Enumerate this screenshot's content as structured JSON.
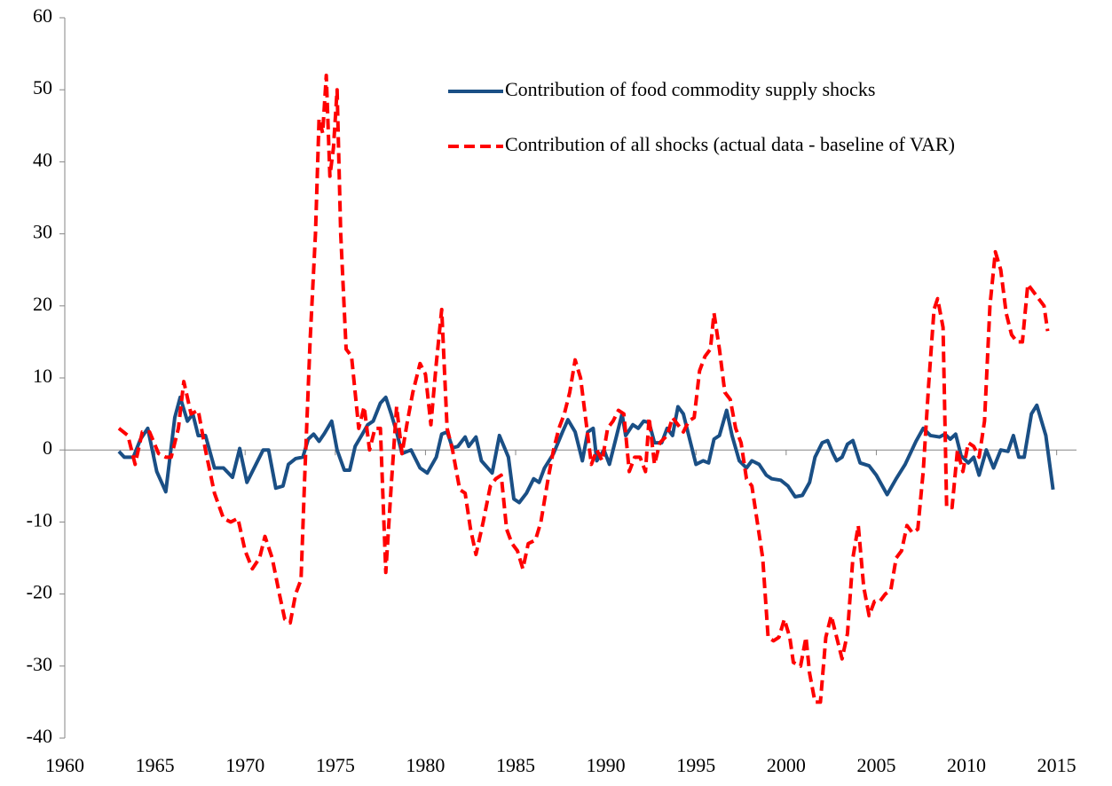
{
  "chart_data": {
    "type": "line",
    "xlim": [
      1960,
      2016.1
    ],
    "xticks": [
      1960,
      1965,
      1970,
      1975,
      1980,
      1985,
      1990,
      1995,
      2000,
      2005,
      2010,
      2015
    ],
    "ylim": [
      -40,
      60
    ],
    "yticks": [
      -40,
      -30,
      -20,
      -10,
      0,
      10,
      20,
      30,
      40,
      50,
      60
    ],
    "grid": false,
    "legend": "top-right",
    "series": [
      {
        "name": "Contribution of food commodity supply shocks",
        "color": "#1a4f85",
        "style": "solid",
        "x": [
          1963.0,
          1963.3,
          1963.8,
          1964.2,
          1964.6,
          1965.1,
          1965.6,
          1966.1,
          1966.4,
          1966.8,
          1967.1,
          1967.4,
          1967.8,
          1968.3,
          1968.8,
          1969.3,
          1969.7,
          1970.1,
          1970.6,
          1971.0,
          1971.3,
          1971.7,
          1972.1,
          1972.4,
          1972.8,
          1973.2,
          1973.5,
          1973.8,
          1974.1,
          1974.4,
          1974.8,
          1975.1,
          1975.5,
          1975.8,
          1976.1,
          1976.5,
          1976.8,
          1977.1,
          1977.5,
          1977.8,
          1978.1,
          1978.4,
          1978.7,
          1979.2,
          1979.7,
          1980.1,
          1980.6,
          1980.9,
          1981.2,
          1981.5,
          1981.8,
          1982.2,
          1982.4,
          1982.8,
          1983.1,
          1983.7,
          1984.1,
          1984.6,
          1984.9,
          1985.2,
          1985.6,
          1986.0,
          1986.3,
          1986.6,
          1987.1,
          1987.6,
          1987.9,
          1988.3,
          1988.7,
          1989.0,
          1989.3,
          1989.5,
          1989.9,
          1990.2,
          1990.6,
          1990.9,
          1991.1,
          1991.5,
          1991.8,
          1992.1,
          1992.4,
          1992.7,
          1993.1,
          1993.4,
          1993.7,
          1994.0,
          1994.3,
          1994.6,
          1995.0,
          1995.4,
          1995.7,
          1996.0,
          1996.3,
          1996.7,
          1997.0,
          1997.4,
          1997.8,
          1998.1,
          1998.5,
          1998.9,
          1999.2,
          1999.7,
          2000.1,
          2000.5,
          2000.9,
          2001.3,
          2001.6,
          2002.0,
          2002.3,
          2002.6,
          2002.8,
          2003.1,
          2003.4,
          2003.7,
          2004.1,
          2004.6,
          2005.0,
          2005.6,
          2006.1,
          2006.6,
          2007.2,
          2007.6,
          2008.0,
          2008.5,
          2008.8,
          2009.1,
          2009.4,
          2009.7,
          2010.1,
          2010.4,
          2010.7,
          2011.1,
          2011.5,
          2011.9,
          2012.3,
          2012.6,
          2012.9,
          2013.2,
          2013.6,
          2013.9,
          2014.4,
          2014.8
        ],
        "values": [
          -0.2,
          -1,
          -1,
          1.5,
          3,
          -3,
          -5.8,
          4.5,
          7.3,
          4,
          5,
          2,
          2,
          -2.5,
          -2.5,
          -3.8,
          0.2,
          -4.5,
          -2,
          0,
          0,
          -5.3,
          -5,
          -2,
          -1.2,
          -1,
          1.5,
          2.2,
          1.2,
          2.3,
          4,
          0,
          -2.8,
          -2.8,
          0.5,
          2.2,
          3.5,
          4,
          6.5,
          7.3,
          5,
          2.5,
          -0.5,
          0,
          -2.5,
          -3.2,
          -1,
          2.2,
          2.5,
          0.3,
          0.5,
          1.8,
          0.5,
          1.8,
          -1.5,
          -3.2,
          2,
          -1,
          -6.8,
          -7.3,
          -6,
          -4,
          -4.5,
          -2.5,
          -0.5,
          2.5,
          4.2,
          2.5,
          -1.5,
          2.5,
          3,
          -1.5,
          0,
          -2,
          2,
          5,
          2,
          3.5,
          3,
          4,
          3.8,
          1,
          1,
          3,
          2,
          6,
          5,
          2,
          -2,
          -1.5,
          -1.8,
          1.5,
          2,
          5.5,
          2,
          -1.5,
          -2.5,
          -1.5,
          -2,
          -3.5,
          -4,
          -4.2,
          -5,
          -6.5,
          -6.3,
          -4.5,
          -1,
          1,
          1.3,
          -0.5,
          -1.5,
          -1,
          0.8,
          1.3,
          -1.8,
          -2.2,
          -3.5,
          -6.2,
          -4,
          -2,
          1.2,
          3,
          2,
          1.8,
          2.2,
          1.5,
          2.2,
          -0.8,
          -1.8,
          -1,
          -3.5,
          0,
          -2.5,
          0,
          -0.2,
          2,
          -1,
          -1,
          5,
          6.2,
          2,
          -5.5
        ]
      },
      {
        "name": "Contribution of all shocks (actual data - baseline of VAR)",
        "color": "#ff0000",
        "style": "dashed",
        "x": [
          1963.0,
          1963.5,
          1963.9,
          1964.3,
          1964.7,
          1965.2,
          1965.6,
          1965.9,
          1966.3,
          1966.6,
          1967.0,
          1967.4,
          1967.8,
          1968.3,
          1968.8,
          1969.2,
          1969.6,
          1970.0,
          1970.4,
          1970.8,
          1971.1,
          1971.5,
          1971.9,
          1972.2,
          1972.5,
          1972.8,
          1973.1,
          1973.3,
          1973.6,
          1973.9,
          1974.1,
          1974.3,
          1974.5,
          1974.7,
          1974.9,
          1975.1,
          1975.3,
          1975.6,
          1975.9,
          1976.3,
          1976.6,
          1976.9,
          1977.2,
          1977.5,
          1977.8,
          1978.1,
          1978.4,
          1978.7,
          1979.0,
          1979.3,
          1979.7,
          1980.0,
          1980.3,
          1980.6,
          1980.9,
          1981.2,
          1981.5,
          1981.9,
          1982.2,
          1982.5,
          1982.8,
          1983.2,
          1983.6,
          1983.9,
          1984.2,
          1984.5,
          1984.8,
          1985.1,
          1985.4,
          1985.7,
          1986.1,
          1986.4,
          1986.8,
          1987.1,
          1987.4,
          1987.7,
          1988.0,
          1988.3,
          1988.6,
          1988.9,
          1989.2,
          1989.5,
          1989.8,
          1990.1,
          1990.4,
          1990.7,
          1991.0,
          1991.3,
          1991.6,
          1991.9,
          1992.2,
          1992.4,
          1992.7,
          1993.0,
          1993.4,
          1993.7,
          1994.0,
          1994.3,
          1994.6,
          1994.9,
          1995.2,
          1995.5,
          1995.8,
          1996.0,
          1996.3,
          1996.6,
          1996.9,
          1997.2,
          1997.5,
          1997.8,
          1998.1,
          1998.4,
          1998.7,
          1999.0,
          1999.3,
          1999.6,
          1999.9,
          2000.2,
          2000.4,
          2000.8,
          2001.1,
          2001.3,
          2001.6,
          2001.9,
          2002.2,
          2002.5,
          2002.8,
          2003.1,
          2003.4,
          2003.7,
          2004.0,
          2004.3,
          2004.6,
          2004.9,
          2005.2,
          2005.5,
          2005.8,
          2006.1,
          2006.4,
          2006.7,
          2007.0,
          2007.3,
          2007.6,
          2007.9,
          2008.2,
          2008.4,
          2008.7,
          2008.9,
          2009.2,
          2009.5,
          2009.8,
          2010.1,
          2010.4,
          2010.7,
          2011.0,
          2011.3,
          2011.6,
          2011.9,
          2012.2,
          2012.5,
          2012.8,
          2013.1,
          2013.4,
          2013.7,
          2014.0,
          2014.3,
          2014.5
        ],
        "values": [
          3,
          2,
          -2,
          2.5,
          2.5,
          -0.5,
          -1,
          -1,
          3,
          9.5,
          5,
          5.5,
          0,
          -6,
          -9.5,
          -10,
          -9.5,
          -14,
          -16.5,
          -15,
          -12,
          -15,
          -20,
          -23.5,
          -24,
          -20,
          -18,
          -4,
          15,
          30,
          46,
          44,
          52,
          38,
          42,
          50,
          30,
          14,
          13,
          3,
          6,
          0,
          3,
          3,
          -17,
          -5,
          6,
          -0.5,
          4,
          8,
          12,
          10.5,
          3.5,
          12,
          19.5,
          3,
          0,
          -5.5,
          -6,
          -11,
          -14.5,
          -10,
          -5,
          -4,
          -3.5,
          -11,
          -13,
          -14,
          -16.5,
          -13,
          -12.5,
          -10,
          -4,
          0,
          3,
          5,
          8,
          12.5,
          10,
          4,
          -2,
          0,
          -1.5,
          3,
          4,
          5.5,
          5,
          -3,
          -1,
          -1,
          -3,
          4.5,
          -2,
          1,
          2,
          4.5,
          3.5,
          2.5,
          4,
          4.5,
          11,
          13,
          14,
          19,
          14,
          8,
          7,
          3,
          1,
          -4,
          -5,
          -10,
          -15,
          -26,
          -26.5,
          -26,
          -23.5,
          -26,
          -29.5,
          -30,
          -26,
          -31,
          -35,
          -35,
          -26,
          -23,
          -26,
          -29,
          -25.5,
          -15,
          -10.5,
          -19,
          -23,
          -21,
          -21,
          -20,
          -19.5,
          -15,
          -14,
          -10.5,
          -11.5,
          -11,
          -3,
          9,
          19.5,
          21,
          17,
          -8,
          -8,
          0,
          -3,
          1,
          0.5,
          -1,
          4,
          20,
          27.5,
          25,
          19,
          16,
          15,
          15,
          23,
          22,
          21,
          20,
          16.5
        ]
      }
    ]
  }
}
